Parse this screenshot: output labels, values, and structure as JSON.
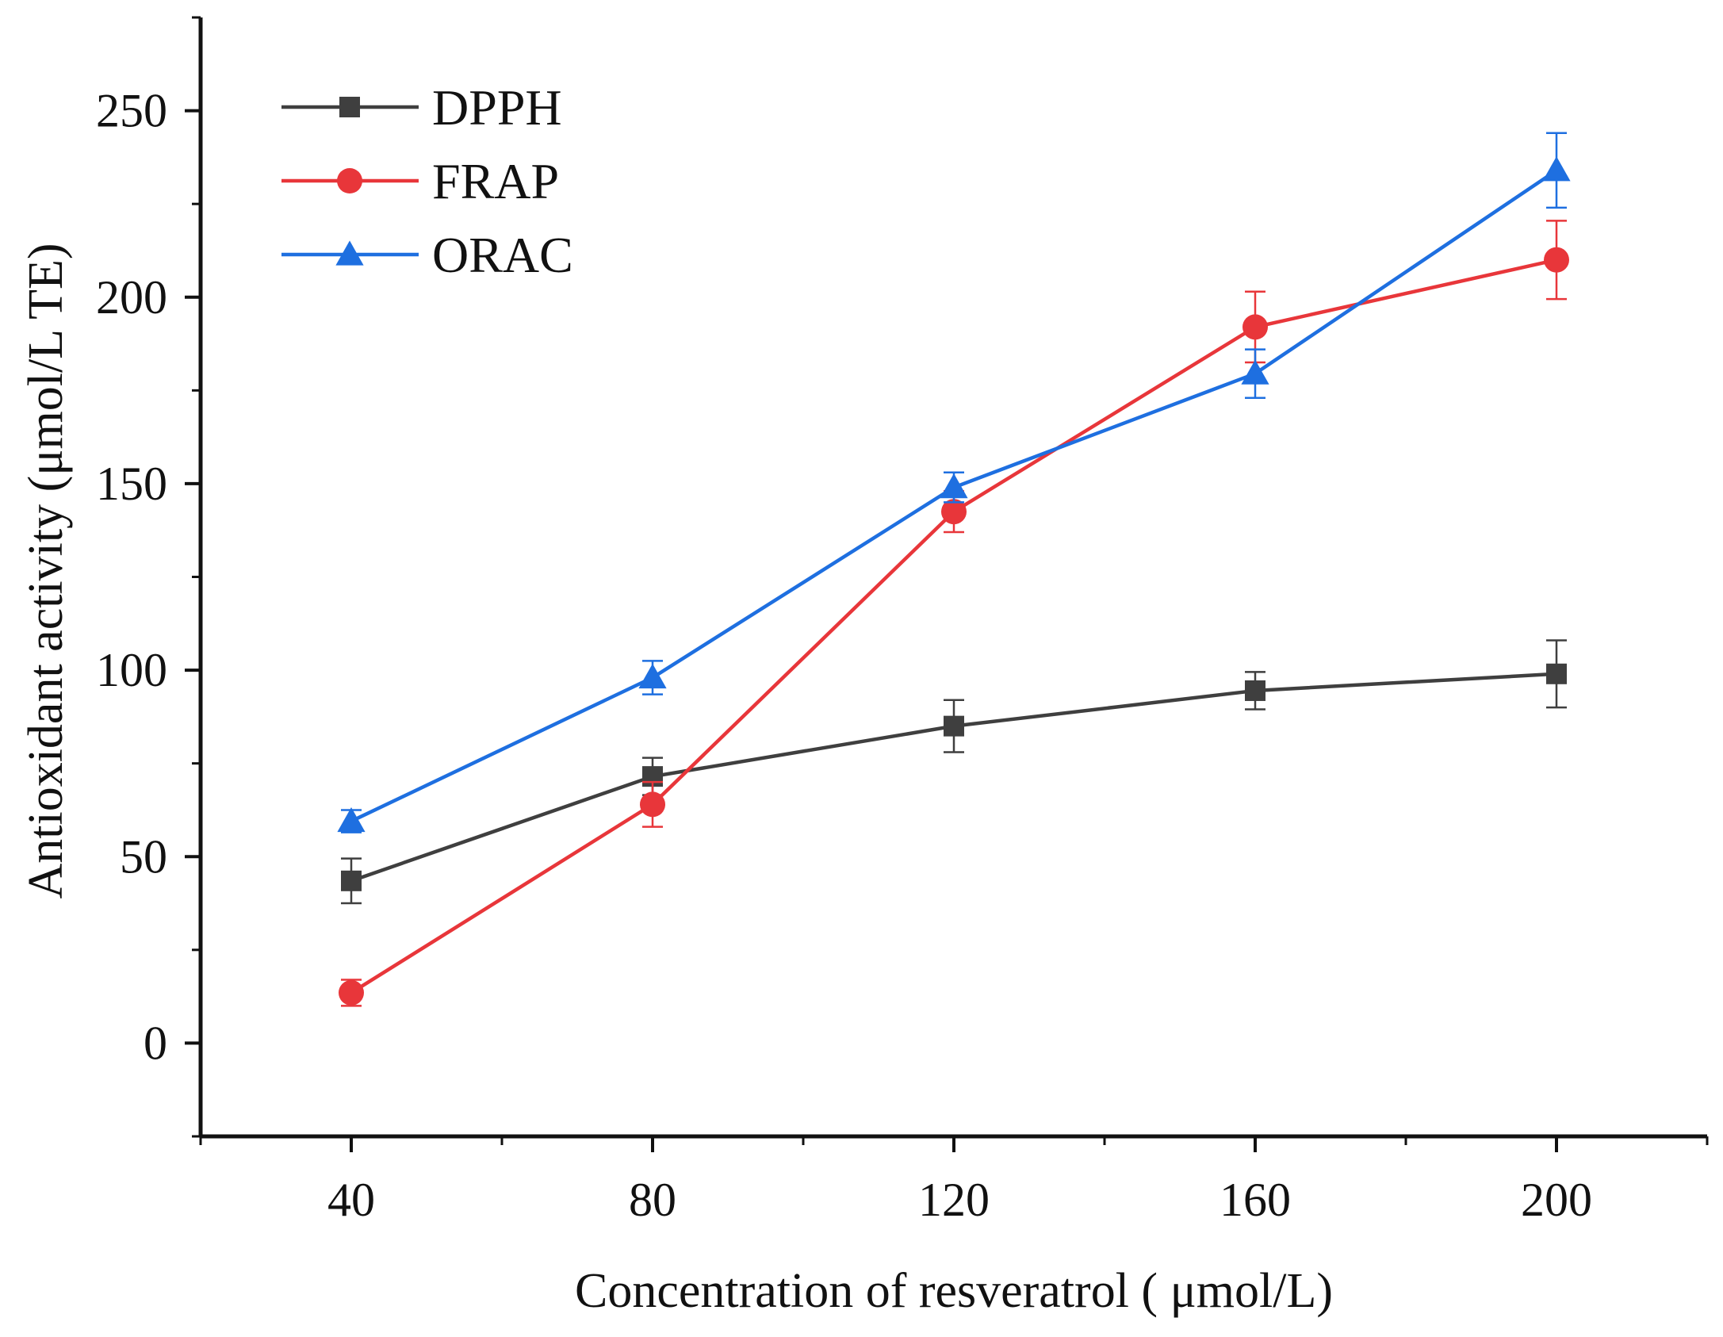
{
  "chart_data": {
    "type": "line",
    "title": "",
    "xlabel": "Concentration of resveratrol ( μmol/L)",
    "ylabel": "Antioxidant activity (μmol/L TE)",
    "x": [
      40,
      80,
      120,
      160,
      200
    ],
    "xlim": [
      20,
      220
    ],
    "ylim": [
      -25,
      275
    ],
    "xticks": [
      40,
      80,
      120,
      160,
      200
    ],
    "xtick_labels": [
      "40",
      "80",
      "120",
      "160",
      "200"
    ],
    "yticks": [
      0,
      50,
      100,
      150,
      200,
      250
    ],
    "ytick_labels": [
      "0",
      "50",
      "100",
      "150",
      "200",
      "250"
    ],
    "grid": false,
    "legend_position": "top-left",
    "series": [
      {
        "name": "DPPH",
        "color": "#3f3f3f",
        "marker": "square",
        "values": [
          43.5,
          71.5,
          85,
          94.5,
          99
        ],
        "errors": [
          6,
          5,
          7,
          5,
          9
        ]
      },
      {
        "name": "FRAP",
        "color": "#e8363a",
        "marker": "circle",
        "values": [
          13.5,
          64,
          142.5,
          192,
          210
        ],
        "errors": [
          3.5,
          6,
          5.5,
          9.5,
          10.5
        ]
      },
      {
        "name": "ORAC",
        "color": "#1e6fe0",
        "marker": "triangle",
        "values": [
          59.5,
          98,
          149,
          179.5,
          234
        ],
        "errors": [
          3,
          4.5,
          4,
          6.5,
          10
        ]
      }
    ]
  }
}
